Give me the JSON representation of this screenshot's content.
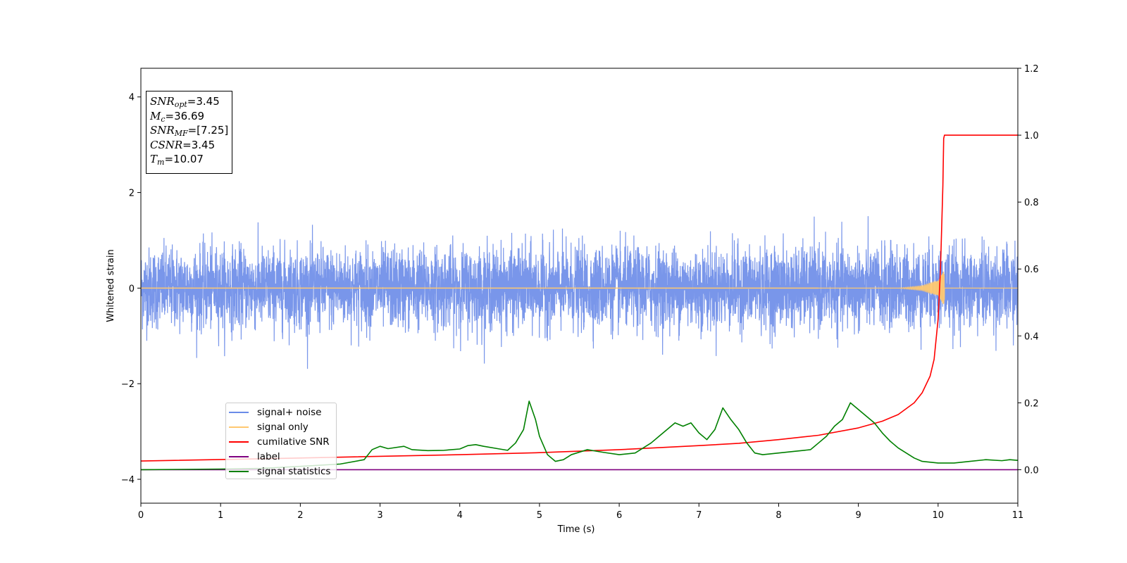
{
  "chart_data": {
    "type": "line",
    "title": "",
    "xlabel": "Time (s)",
    "ylabel": "Whitened strain",
    "xlim": [
      0,
      11
    ],
    "ylim": [
      -4.5,
      4.6
    ],
    "y2lim": [
      -0.1,
      1.2
    ],
    "xticks": [
      "0",
      "1",
      "2",
      "3",
      "4",
      "5",
      "6",
      "7",
      "8",
      "9",
      "10",
      "11"
    ],
    "yticks": [
      "−4",
      "−2",
      "0",
      "2",
      "4"
    ],
    "y2ticks": [
      "0.0",
      "0.2",
      "0.4",
      "0.6",
      "0.8",
      "1.0",
      "1.2"
    ],
    "grid": false,
    "legend_position": "lower-left",
    "colors": {
      "signal_noise": "#6a8be8",
      "signal_only": "#ffc870",
      "cumulative_snr": "#ff0000",
      "label": "#800080",
      "signal_statistics": "#008000"
    },
    "annotation": [
      {
        "base": "SNR",
        "sub": "opt",
        "value": "=3.45"
      },
      {
        "base": "M",
        "sub": "c",
        "value": "=36.69"
      },
      {
        "base": "SNR",
        "sub": "MF",
        "value": "=[7.25]"
      },
      {
        "base": "CSNR",
        "sub": "",
        "value": "=3.45"
      },
      {
        "base": "T",
        "sub": "m",
        "value": "=10.07"
      }
    ],
    "series": [
      {
        "name": "signal+ noise",
        "axis": "left",
        "amplitude_range": [
          -1.85,
          1.85
        ],
        "x_range": [
          0,
          11
        ]
      },
      {
        "name": "signal only",
        "axis": "left",
        "x": [
          0,
          9.5,
          9.8,
          10.0,
          10.07,
          10.1,
          11
        ],
        "y": [
          0,
          0,
          0.05,
          0.15,
          0.35,
          0,
          0
        ]
      },
      {
        "name": "cumilative SNR",
        "axis": "right",
        "x": [
          0,
          2,
          4,
          5,
          6,
          7,
          7.5,
          8,
          8.5,
          9,
          9.3,
          9.5,
          9.7,
          9.8,
          9.9,
          9.95,
          10.0,
          10.03,
          10.06,
          10.07,
          10.08,
          11
        ],
        "y": [
          0.026,
          0.035,
          0.045,
          0.051,
          0.06,
          0.072,
          0.079,
          0.09,
          0.103,
          0.125,
          0.145,
          0.165,
          0.2,
          0.23,
          0.28,
          0.33,
          0.45,
          0.6,
          0.85,
          0.99,
          1.0,
          1.0
        ]
      },
      {
        "name": "label",
        "axis": "right",
        "x": [
          0,
          11
        ],
        "y": [
          0,
          0
        ]
      },
      {
        "name": "signal statistics",
        "axis": "right",
        "x": [
          0,
          1,
          1.5,
          2,
          2.5,
          2.8,
          2.9,
          3.0,
          3.1,
          3.3,
          3.4,
          3.6,
          3.8,
          4.0,
          4.1,
          4.2,
          4.3,
          4.5,
          4.6,
          4.7,
          4.75,
          4.8,
          4.87,
          4.95,
          5.0,
          5.1,
          5.2,
          5.3,
          5.4,
          5.6,
          5.8,
          6.0,
          6.2,
          6.4,
          6.5,
          6.6,
          6.7,
          6.8,
          6.9,
          7.0,
          7.1,
          7.2,
          7.3,
          7.4,
          7.5,
          7.6,
          7.7,
          7.8,
          8.0,
          8.2,
          8.4,
          8.5,
          8.6,
          8.7,
          8.75,
          8.8,
          8.9,
          9.0,
          9.1,
          9.2,
          9.3,
          9.4,
          9.5,
          9.6,
          9.7,
          9.8,
          10.0,
          10.2,
          10.4,
          10.6,
          10.8,
          10.9,
          11.0
        ],
        "y": [
          0.0,
          0.002,
          0.004,
          0.01,
          0.017,
          0.03,
          0.06,
          0.07,
          0.063,
          0.07,
          0.06,
          0.057,
          0.058,
          0.062,
          0.072,
          0.075,
          0.07,
          0.062,
          0.058,
          0.08,
          0.1,
          0.12,
          0.205,
          0.15,
          0.1,
          0.045,
          0.025,
          0.03,
          0.045,
          0.06,
          0.052,
          0.045,
          0.05,
          0.08,
          0.1,
          0.12,
          0.14,
          0.13,
          0.14,
          0.11,
          0.09,
          0.12,
          0.185,
          0.15,
          0.12,
          0.08,
          0.05,
          0.045,
          0.05,
          0.055,
          0.06,
          0.08,
          0.1,
          0.13,
          0.14,
          0.15,
          0.2,
          0.18,
          0.16,
          0.14,
          0.11,
          0.085,
          0.065,
          0.05,
          0.035,
          0.025,
          0.02,
          0.02,
          0.025,
          0.03,
          0.027,
          0.03,
          0.028
        ]
      }
    ]
  }
}
